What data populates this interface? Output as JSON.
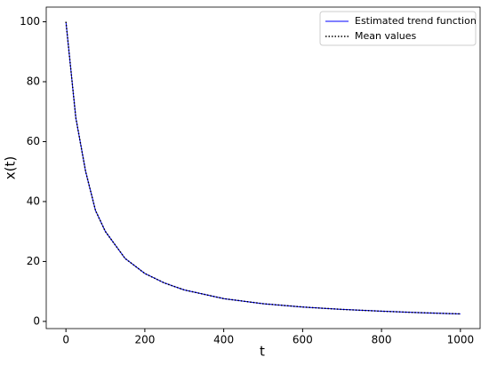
{
  "chart_data": {
    "type": "line",
    "xlabel": "t",
    "ylabel": "x(t)",
    "x": [
      0,
      25,
      50,
      75,
      100,
      150,
      200,
      250,
      300,
      400,
      500,
      600,
      700,
      800,
      900,
      1000
    ],
    "series": [
      {
        "name": "Estimated trend function",
        "color": "#0000ff",
        "style": "solid",
        "values": [
          100,
          68,
          50,
          37,
          30,
          21,
          16,
          12.8,
          10.5,
          7.6,
          5.9,
          4.8,
          4.0,
          3.4,
          2.9,
          2.5
        ]
      },
      {
        "name": "Mean values",
        "color": "#000000",
        "style": "dotted",
        "values": [
          100,
          68,
          50,
          37,
          30,
          21,
          16,
          12.8,
          10.5,
          7.6,
          5.9,
          4.8,
          4.0,
          3.4,
          2.9,
          2.5
        ]
      }
    ],
    "xlim": [
      -49.95,
      1049.95
    ],
    "ylim": [
      -2.4,
      104.9
    ],
    "xticks": [
      0,
      200,
      400,
      600,
      800,
      1000
    ],
    "yticks": [
      0,
      20,
      40,
      60,
      80,
      100
    ],
    "legend": "upper right"
  }
}
